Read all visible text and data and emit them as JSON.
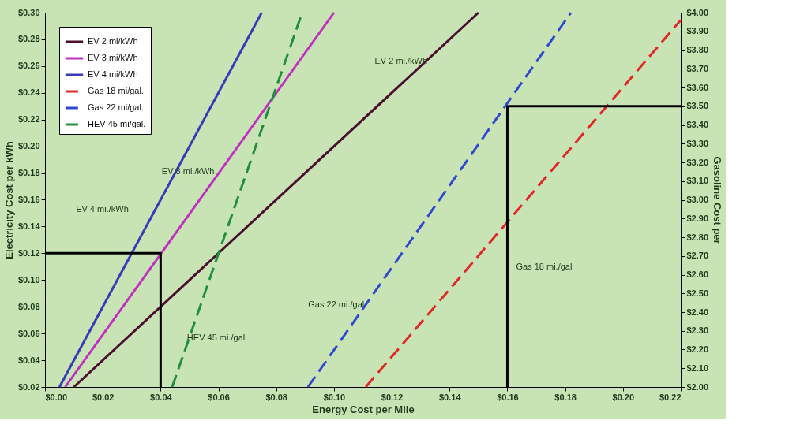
{
  "chart_data": {
    "type": "line",
    "xlabel": "Energy Cost per Mile",
    "ylabel": "Electricity Cost per kWh",
    "y2label": "Gasoline Cost per",
    "xlim": [
      0,
      0.22
    ],
    "ylim": [
      0.02,
      0.3
    ],
    "y2lim": [
      2.0,
      4.0
    ],
    "xticks": [
      {
        "value": 0,
        "label": "$0.00"
      },
      {
        "value": 0.02,
        "label": "$0.02"
      },
      {
        "value": 0.04,
        "label": "$0.04"
      },
      {
        "value": 0.06,
        "label": "$0.06"
      },
      {
        "value": 0.08,
        "label": "$0.08"
      },
      {
        "value": 0.1,
        "label": "$0.10"
      },
      {
        "value": 0.12,
        "label": "$0.12"
      },
      {
        "value": 0.14,
        "label": "$0.14"
      },
      {
        "value": 0.16,
        "label": "$0.16"
      },
      {
        "value": 0.18,
        "label": "$0.18"
      },
      {
        "value": 0.2,
        "label": "$0.20"
      },
      {
        "value": 0.22,
        "label": "$0.22"
      }
    ],
    "yticks": [
      {
        "value": 0.02,
        "label": "$0.02"
      },
      {
        "value": 0.04,
        "label": "$0.04"
      },
      {
        "value": 0.06,
        "label": "$0.06"
      },
      {
        "value": 0.08,
        "label": "$0.08"
      },
      {
        "value": 0.1,
        "label": "$0.10"
      },
      {
        "value": 0.12,
        "label": "$0.12"
      },
      {
        "value": 0.14,
        "label": "$0.14"
      },
      {
        "value": 0.16,
        "label": "$0.16"
      },
      {
        "value": 0.18,
        "label": "$0.18"
      },
      {
        "value": 0.2,
        "label": "$0.20"
      },
      {
        "value": 0.22,
        "label": "$0.22"
      },
      {
        "value": 0.24,
        "label": "$0.24"
      },
      {
        "value": 0.26,
        "label": "$0.26"
      },
      {
        "value": 0.28,
        "label": "$0.28"
      },
      {
        "value": 0.3,
        "label": "$0.30"
      }
    ],
    "y2ticks": [
      {
        "value": 2.0,
        "label": "$2.00"
      },
      {
        "value": 2.1,
        "label": "$2.10"
      },
      {
        "value": 2.2,
        "label": "$2.20"
      },
      {
        "value": 2.3,
        "label": "$2.30"
      },
      {
        "value": 2.4,
        "label": "$2.40"
      },
      {
        "value": 2.5,
        "label": "$2.50"
      },
      {
        "value": 2.6,
        "label": "$2.60"
      },
      {
        "value": 2.7,
        "label": "$2.70"
      },
      {
        "value": 2.8,
        "label": "$2.80"
      },
      {
        "value": 2.9,
        "label": "$2.90"
      },
      {
        "value": 3.0,
        "label": "$3.00"
      },
      {
        "value": 3.1,
        "label": "$3.10"
      },
      {
        "value": 3.2,
        "label": "$3.20"
      },
      {
        "value": 3.3,
        "label": "$3.30"
      },
      {
        "value": 3.4,
        "label": "$3.40"
      },
      {
        "value": 3.5,
        "label": "$3.50"
      },
      {
        "value": 3.6,
        "label": "$3.60"
      },
      {
        "value": 3.7,
        "label": "$3.70"
      },
      {
        "value": 3.8,
        "label": "$3.80"
      },
      {
        "value": 3.9,
        "label": "$3.90"
      },
      {
        "value": 4.0,
        "label": "$4.00"
      }
    ],
    "legend": "top left",
    "grid": false,
    "marker": "none",
    "series": [
      {
        "name": "EV 2 mi/kWh",
        "color": "#4a0f30",
        "x": [
          0.01,
          0.15
        ],
        "values": [
          0.02,
          0.3
        ]
      },
      {
        "name": "EV 3 mi/kWh",
        "color": "#c030c0",
        "x": [
          0.007,
          0.1
        ],
        "values": [
          0.02,
          0.3
        ]
      },
      {
        "name": "EV 4 mi/kWh",
        "color": "#3a3ab8",
        "x": [
          0.005,
          0.075
        ],
        "values": [
          0.02,
          0.3
        ]
      },
      {
        "name": "Gas 18 mi/gal.",
        "color": "#e02828",
        "axis": "y2",
        "line_style": "dashed",
        "x": [
          0.111,
          0.22
        ],
        "values": [
          2.0,
          3.96
        ]
      },
      {
        "name": "Gas 22 mi/gal.",
        "color": "#3048d0",
        "axis": "y2",
        "line_style": "dashed",
        "x": [
          0.091,
          0.182
        ],
        "values": [
          2.0,
          4.0
        ]
      },
      {
        "name": "HEV 45 mi/gal.",
        "color": "#209040",
        "axis": "y2",
        "line_style": "dashed",
        "x": [
          0.044,
          0.089
        ],
        "values": [
          2.0,
          4.0
        ]
      },
      {
        "color": "#000000",
        "x": [
          0,
          0.04,
          0.04
        ],
        "values": [
          0.12,
          0.12,
          0.02
        ]
      },
      {
        "color": "#000000",
        "axis": "y2",
        "x": [
          0.16,
          0.16,
          0.22
        ],
        "values": [
          2.0,
          3.5,
          3.5
        ]
      }
    ],
    "annotations": [
      "EV 2 mi./kWh",
      "EV 3 mi./kWh",
      "EV 4 mi./kWh",
      "Gas 18 mi./gal",
      "Gas 22 mi./gal.",
      "HEV 45 mi./gal"
    ]
  }
}
